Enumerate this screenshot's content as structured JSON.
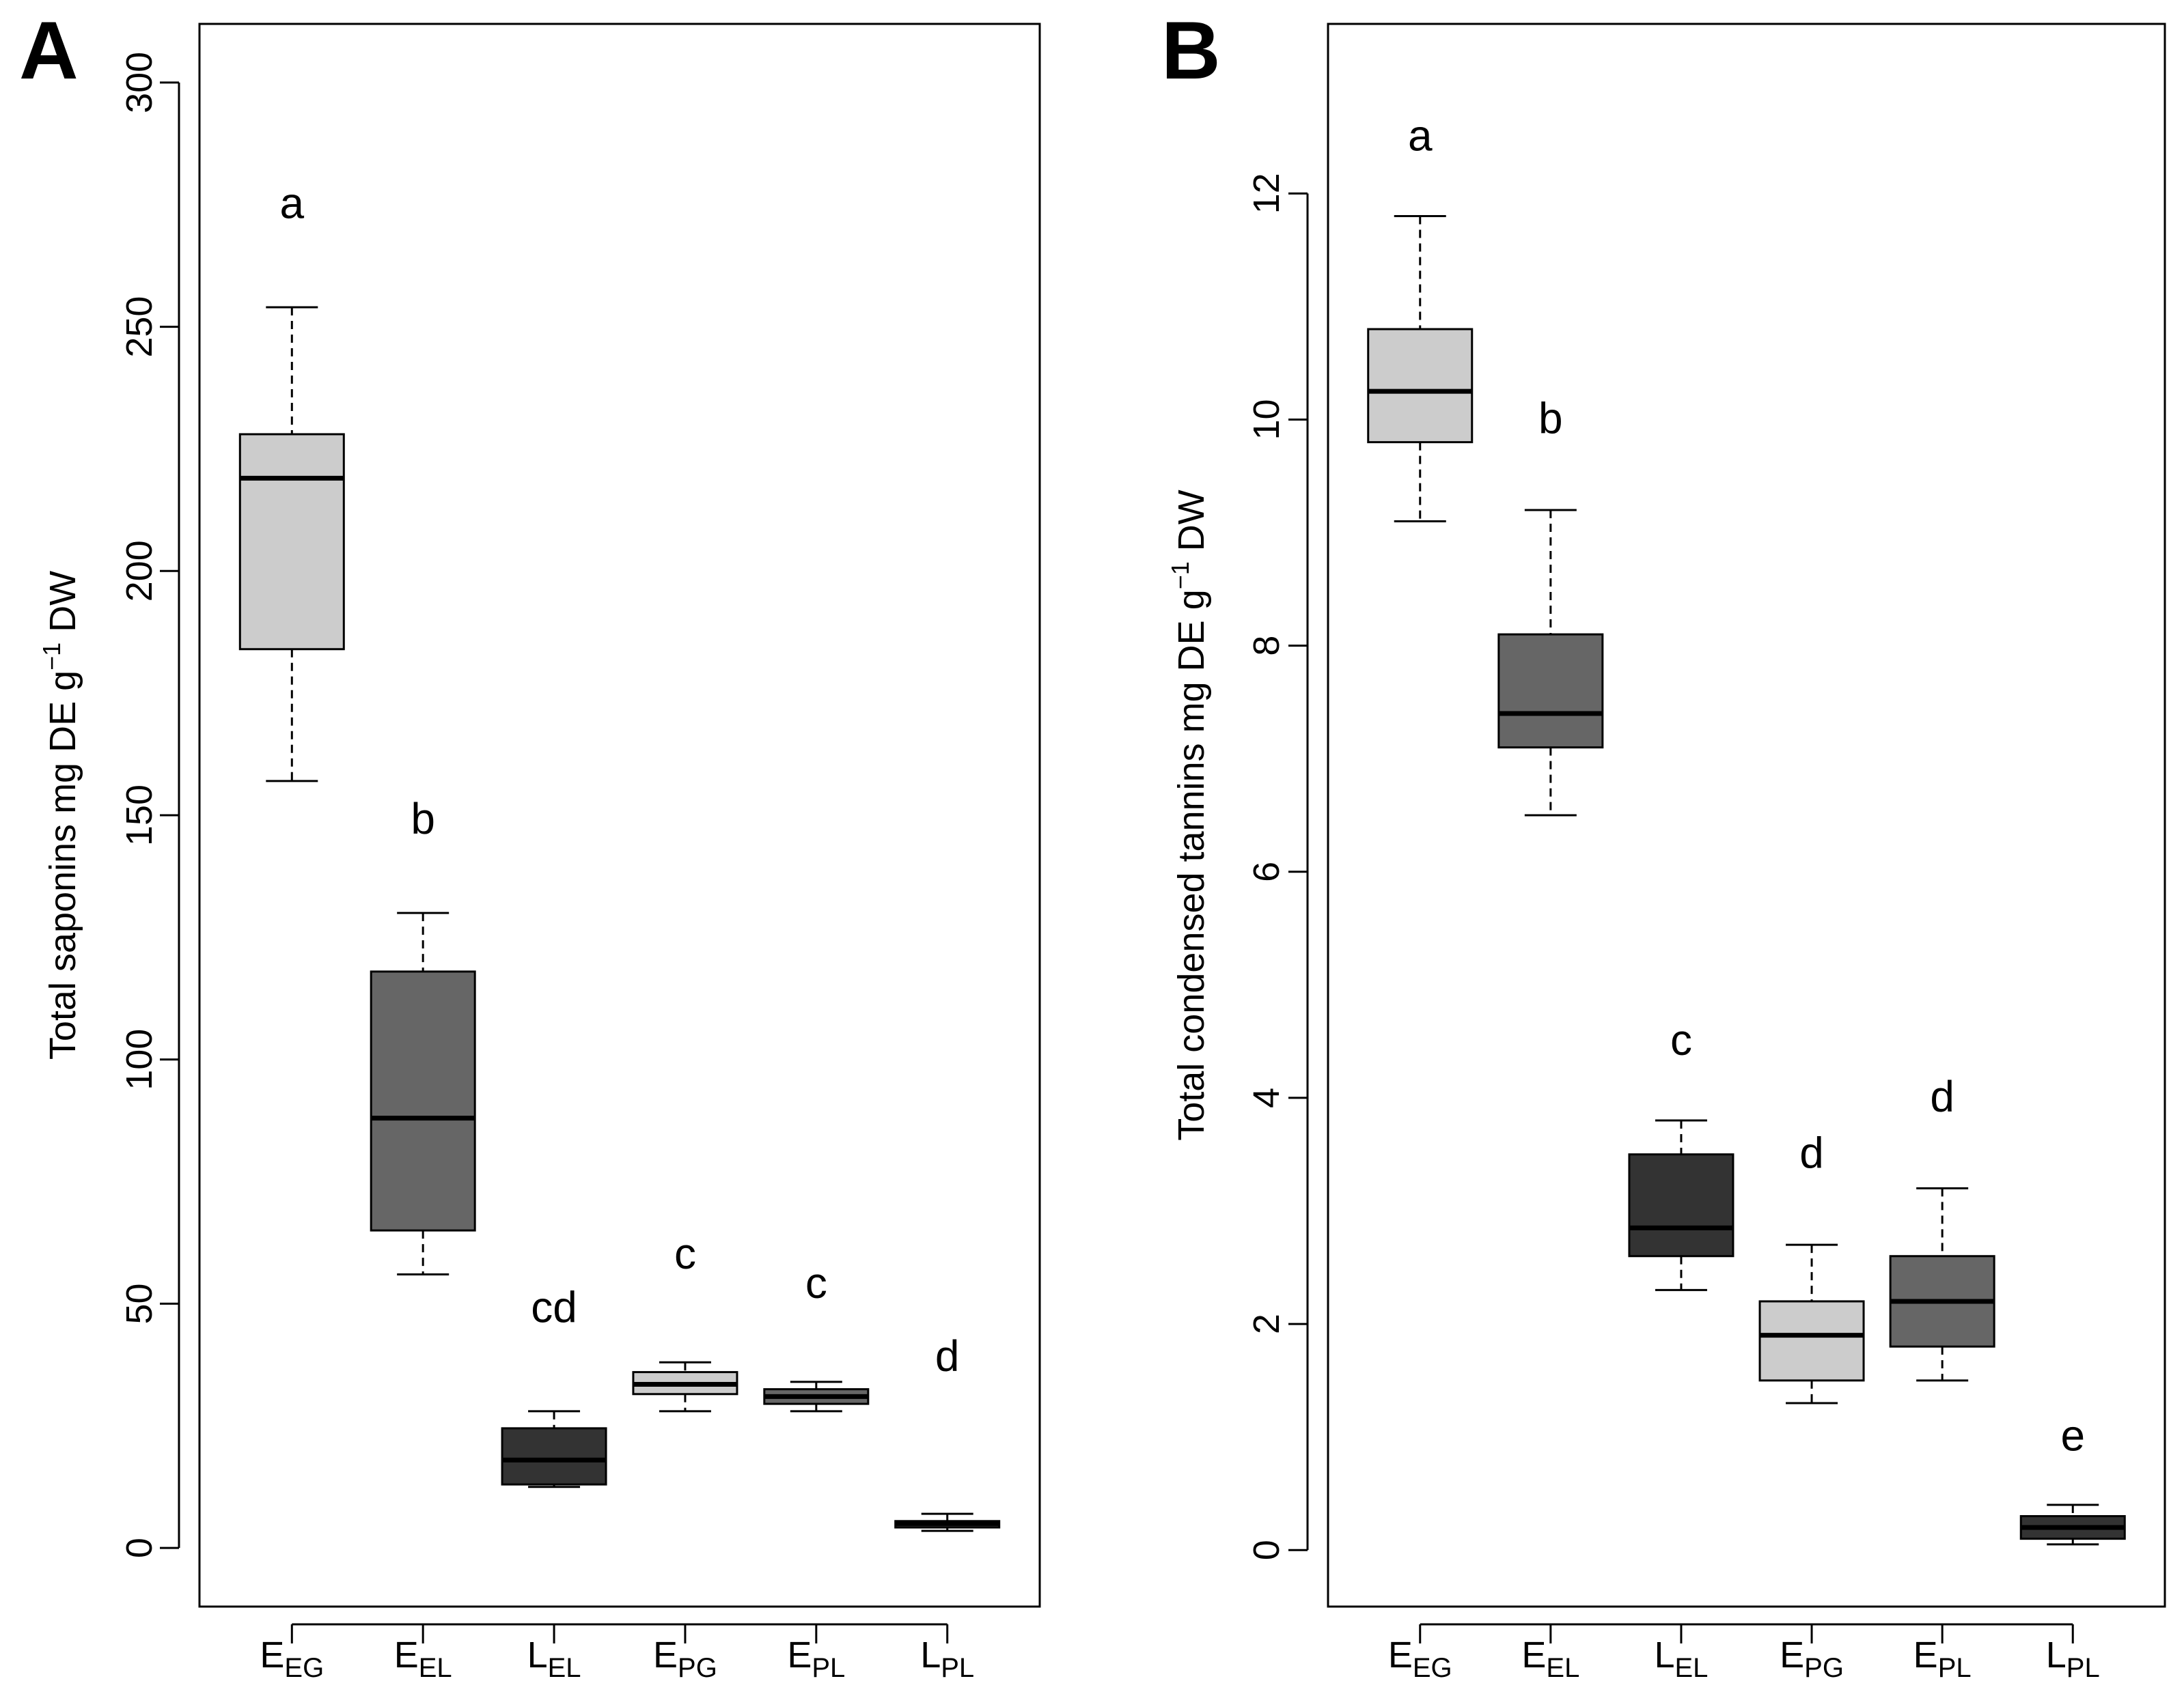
{
  "chart_data": [
    {
      "panel_label": "A",
      "type": "box",
      "ylabel": {
        "pre": "Total saponins mg DE g",
        "sup": "−1",
        "post": " DW"
      },
      "ylim": [
        -12,
        312
      ],
      "yticks": [
        0,
        50,
        100,
        150,
        200,
        250,
        300
      ],
      "categories": [
        {
          "main": "E",
          "sub": "EG"
        },
        {
          "main": "E",
          "sub": "EL"
        },
        {
          "main": "L",
          "sub": "EL"
        },
        {
          "main": "E",
          "sub": "PG"
        },
        {
          "main": "E",
          "sub": "PL"
        },
        {
          "main": "L",
          "sub": "PL"
        }
      ],
      "boxes": [
        {
          "whisker_low": 157,
          "q1": 184,
          "median": 219,
          "q3": 228,
          "whisker_high": 254,
          "fill": "#cccccc",
          "letter": "a",
          "letter_y": 275
        },
        {
          "whisker_low": 56,
          "q1": 65,
          "median": 88,
          "q3": 118,
          "whisker_high": 130,
          "fill": "#666666",
          "letter": "b",
          "letter_y": 149
        },
        {
          "whisker_low": 12.5,
          "q1": 13,
          "median": 18,
          "q3": 24.5,
          "whisker_high": 28,
          "fill": "#333333",
          "letter": "cd",
          "letter_y": 49
        },
        {
          "whisker_low": 28,
          "q1": 31.5,
          "median": 33.5,
          "q3": 36,
          "whisker_high": 38,
          "fill": "#cccccc",
          "letter": "c",
          "letter_y": 60
        },
        {
          "whisker_low": 28,
          "q1": 29.5,
          "median": 31,
          "q3": 32.5,
          "whisker_high": 34,
          "fill": "#666666",
          "letter": "c",
          "letter_y": 54
        },
        {
          "whisker_low": 3.5,
          "q1": 4.2,
          "median": 5,
          "q3": 5.5,
          "whisker_high": 7,
          "fill": "#333333",
          "letter": "d",
          "letter_y": 39
        }
      ]
    },
    {
      "panel_label": "B",
      "type": "box",
      "ylabel": {
        "pre": "Total condensed tannins mg DE g",
        "sup": "−1",
        "post": " DW"
      },
      "ylim": [
        -0.5,
        13.5
      ],
      "yticks": [
        0,
        2,
        4,
        6,
        8,
        10,
        12
      ],
      "categories": [
        {
          "main": "E",
          "sub": "EG"
        },
        {
          "main": "E",
          "sub": "EL"
        },
        {
          "main": "L",
          "sub": "EL"
        },
        {
          "main": "E",
          "sub": "PG"
        },
        {
          "main": "E",
          "sub": "PL"
        },
        {
          "main": "L",
          "sub": "PL"
        }
      ],
      "boxes": [
        {
          "whisker_low": 9.1,
          "q1": 9.8,
          "median": 10.25,
          "q3": 10.8,
          "whisker_high": 11.8,
          "fill": "#cccccc",
          "letter": "a",
          "letter_y": 12.5
        },
        {
          "whisker_low": 6.5,
          "q1": 7.1,
          "median": 7.4,
          "q3": 8.1,
          "whisker_high": 9.2,
          "fill": "#666666",
          "letter": "b",
          "letter_y": 10.0
        },
        {
          "whisker_low": 2.3,
          "q1": 2.6,
          "median": 2.85,
          "q3": 3.5,
          "whisker_high": 3.8,
          "fill": "#333333",
          "letter": "c",
          "letter_y": 4.5
        },
        {
          "whisker_low": 1.3,
          "q1": 1.5,
          "median": 1.9,
          "q3": 2.2,
          "whisker_high": 2.7,
          "fill": "#cccccc",
          "letter": "d",
          "letter_y": 3.5
        },
        {
          "whisker_low": 1.5,
          "q1": 1.8,
          "median": 2.2,
          "q3": 2.6,
          "whisker_high": 3.2,
          "fill": "#666666",
          "letter": "d",
          "letter_y": 4.0
        },
        {
          "whisker_low": 0.05,
          "q1": 0.1,
          "median": 0.2,
          "q3": 0.3,
          "whisker_high": 0.4,
          "fill": "#333333",
          "letter": "e",
          "letter_y": 1.0
        }
      ]
    }
  ]
}
